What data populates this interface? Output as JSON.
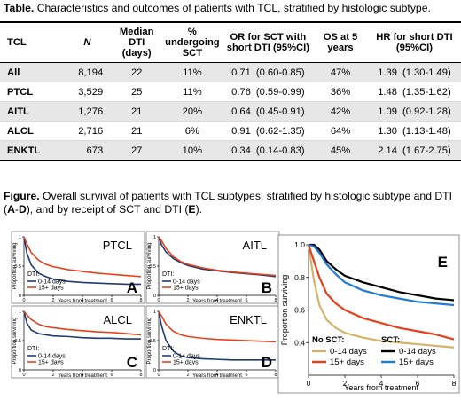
{
  "table_caption": {
    "bold": "Table.",
    "text": " Characteristics and outcomes of patients with TCL, stratified by histologic subtype."
  },
  "table": {
    "headers": {
      "tcl": "TCL",
      "n": "N",
      "dti": "Median DTI (days)",
      "sct": "% undergoing SCT",
      "or": "OR for SCT with short DTI (95%CI)",
      "os": "OS at 5 years",
      "hr": "HR for short DTI (95%CI)"
    },
    "rows": [
      {
        "tcl": "All",
        "n": "8,194",
        "dti": "22",
        "sct": "11%",
        "or": "0.71",
        "or_ci": "(0.60-0.85)",
        "os": "47%",
        "hr": "1.39",
        "hr_ci": "(1.30-1.49)"
      },
      {
        "tcl": "PTCL",
        "n": "3,529",
        "dti": "25",
        "sct": "11%",
        "or": "0.76",
        "or_ci": "(0.59-0.99)",
        "os": "36%",
        "hr": "1.48",
        "hr_ci": "(1.35-1.62)"
      },
      {
        "tcl": "AITL",
        "n": "1,276",
        "dti": "21",
        "sct": "20%",
        "or": "0.64",
        "or_ci": "(0.45-0.91)",
        "os": "42%",
        "hr": "1.09",
        "hr_ci": "(0.92-1.28)"
      },
      {
        "tcl": "ALCL",
        "n": "2,716",
        "dti": "21",
        "sct": "6%",
        "or": "0.91",
        "or_ci": "(0.62-1.35)",
        "os": "64%",
        "hr": "1.30",
        "hr_ci": "(1.13-1.48)"
      },
      {
        "tcl": "ENKTL",
        "n": "673",
        "dti": "27",
        "sct": "10%",
        "or": "0.34",
        "or_ci": "(0.14-0.83)",
        "os": "45%",
        "hr": "2.14",
        "hr_ci": "(1.67-2.75)"
      }
    ]
  },
  "figure_caption": {
    "bold": "Figure.",
    "text1": " Overall survival of patients with TCL subtypes, stratified by histologic subtype and DTI (",
    "b1": "A",
    "dash": "-",
    "b2": "D",
    "text2": "), and by receipt of SCT and DTI (",
    "b3": "E",
    "text3": ")."
  },
  "colors": {
    "short": "#1f3b73",
    "long": "#e8401c",
    "nosct_short": "#d4b36a",
    "sct_short": "#000000",
    "sct_long": "#1f7ad8"
  },
  "small_axis": {
    "ylabel": "Proportion surviving",
    "xlabel": "Years from treatment",
    "yticks": [
      "0",
      "0.5",
      "1"
    ],
    "xticks": [
      "0",
      "2",
      "4",
      "6",
      "8"
    ]
  },
  "legend_small": {
    "header": "DTI:",
    "short": "0-14 days",
    "long": "15+ days"
  },
  "chart_data": [
    {
      "type": "line",
      "title": "PTCL",
      "letter": "A",
      "xlim": [
        0,
        8
      ],
      "ylim": [
        0,
        1
      ],
      "series": [
        {
          "name": "0-14 days",
          "x": [
            0,
            0.2,
            0.5,
            1,
            1.5,
            2,
            3,
            4,
            5,
            6,
            7,
            8
          ],
          "y": [
            1,
            0.72,
            0.52,
            0.38,
            0.32,
            0.28,
            0.24,
            0.22,
            0.21,
            0.2,
            0.19,
            0.19
          ]
        },
        {
          "name": "15+ days",
          "x": [
            0,
            0.2,
            0.5,
            1,
            1.5,
            2,
            3,
            4,
            5,
            6,
            7,
            8
          ],
          "y": [
            1,
            0.88,
            0.73,
            0.6,
            0.53,
            0.49,
            0.44,
            0.41,
            0.38,
            0.36,
            0.34,
            0.32
          ]
        }
      ]
    },
    {
      "type": "line",
      "title": "AITL",
      "letter": "B",
      "xlim": [
        0,
        8
      ],
      "ylim": [
        0,
        1
      ],
      "series": [
        {
          "name": "0-14 days",
          "x": [
            0,
            0.2,
            0.5,
            1,
            1.5,
            2,
            3,
            4,
            5,
            6,
            7,
            8
          ],
          "y": [
            1,
            0.86,
            0.74,
            0.63,
            0.56,
            0.51,
            0.45,
            0.42,
            0.39,
            0.37,
            0.35,
            0.32
          ]
        },
        {
          "name": "15+ days",
          "x": [
            0,
            0.2,
            0.5,
            1,
            1.5,
            2,
            3,
            4,
            5,
            6,
            7,
            8
          ],
          "y": [
            1,
            0.93,
            0.8,
            0.66,
            0.58,
            0.53,
            0.47,
            0.43,
            0.4,
            0.38,
            0.36,
            0.34
          ]
        }
      ]
    },
    {
      "type": "line",
      "title": "ALCL",
      "letter": "C",
      "xlim": [
        0,
        8
      ],
      "ylim": [
        0,
        1
      ],
      "series": [
        {
          "name": "0-14 days",
          "x": [
            0,
            0.2,
            0.5,
            1,
            1.5,
            2,
            3,
            4,
            5,
            6,
            7,
            8
          ],
          "y": [
            1,
            0.8,
            0.68,
            0.62,
            0.6,
            0.58,
            0.57,
            0.55,
            0.54,
            0.54,
            0.53,
            0.53
          ]
        },
        {
          "name": "15+ days",
          "x": [
            0,
            0.2,
            0.5,
            1,
            1.5,
            2,
            3,
            4,
            5,
            6,
            7,
            8
          ],
          "y": [
            1,
            0.94,
            0.86,
            0.78,
            0.74,
            0.72,
            0.69,
            0.67,
            0.65,
            0.64,
            0.62,
            0.6
          ]
        }
      ]
    },
    {
      "type": "line",
      "title": "ENKTL",
      "letter": "D",
      "xlim": [
        0,
        8
      ],
      "ylim": [
        0,
        1
      ],
      "series": [
        {
          "name": "0-14 days",
          "x": [
            0,
            0.2,
            0.5,
            1,
            1.5,
            2,
            3,
            4,
            5,
            6,
            7,
            8
          ],
          "y": [
            1,
            0.75,
            0.5,
            0.32,
            0.24,
            0.21,
            0.19,
            0.18,
            0.17,
            0.17,
            0.17,
            0.17
          ]
        },
        {
          "name": "15+ days",
          "x": [
            0,
            0.2,
            0.5,
            1,
            1.5,
            2,
            3,
            4,
            5,
            6,
            7,
            8
          ],
          "y": [
            1,
            0.92,
            0.78,
            0.66,
            0.6,
            0.57,
            0.54,
            0.52,
            0.51,
            0.5,
            0.49,
            0.48
          ]
        }
      ]
    },
    {
      "type": "line",
      "letter": "E",
      "xlabel": "Years from treatment",
      "ylabel": "Proportion surviving",
      "xlim": [
        0,
        8
      ],
      "ylim": [
        0.2,
        1
      ],
      "xticks": [
        "0",
        "2",
        "4",
        "6",
        "8"
      ],
      "yticks": [
        "0.4",
        "0.6",
        "0.8",
        "1.0"
      ],
      "legend": {
        "nosct_header": "No SCT:",
        "sct_header": "SCT:",
        "short": "0-14 days",
        "long": "15+ days"
      },
      "series": [
        {
          "name": "No SCT 0-14 days",
          "x": [
            0,
            0.3,
            0.6,
            1,
            1.5,
            2,
            3,
            4,
            5,
            6,
            7,
            8
          ],
          "y": [
            1,
            0.78,
            0.63,
            0.54,
            0.49,
            0.46,
            0.43,
            0.41,
            0.4,
            0.39,
            0.38,
            0.37
          ]
        },
        {
          "name": "No SCT 15+ days",
          "x": [
            0,
            0.3,
            0.6,
            1,
            1.5,
            2,
            3,
            4,
            5,
            6,
            7,
            8
          ],
          "y": [
            1,
            0.9,
            0.8,
            0.7,
            0.64,
            0.6,
            0.55,
            0.52,
            0.49,
            0.47,
            0.45,
            0.42
          ]
        },
        {
          "name": "SCT 0-14 days",
          "x": [
            0,
            0.3,
            0.6,
            1,
            1.5,
            2,
            3,
            4,
            5,
            6,
            7,
            8
          ],
          "y": [
            1,
            1,
            0.97,
            0.9,
            0.85,
            0.81,
            0.77,
            0.74,
            0.71,
            0.69,
            0.67,
            0.66
          ]
        },
        {
          "name": "SCT 15+ days",
          "x": [
            0,
            0.3,
            0.6,
            1,
            1.5,
            2,
            3,
            4,
            5,
            6,
            7,
            8
          ],
          "y": [
            1,
            0.99,
            0.95,
            0.88,
            0.82,
            0.77,
            0.72,
            0.69,
            0.67,
            0.65,
            0.64,
            0.63
          ]
        }
      ]
    }
  ]
}
